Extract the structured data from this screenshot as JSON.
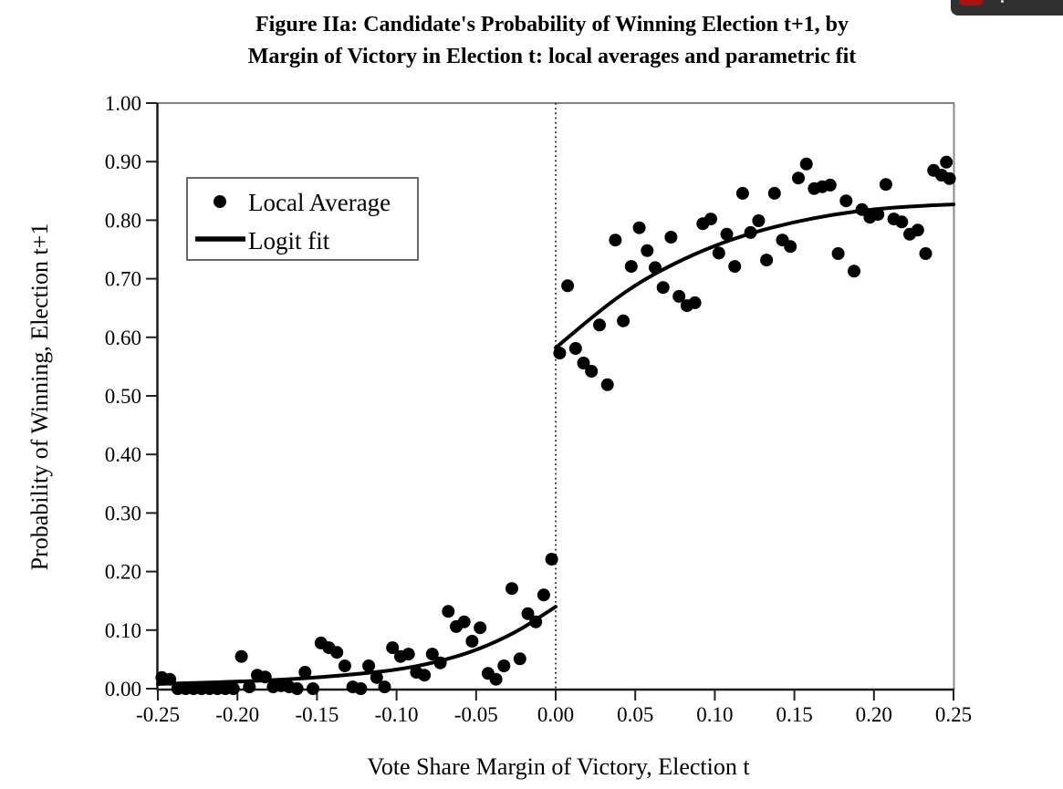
{
  "title": {
    "line1": "Figure IIa: Candidate's Probability of Winning Election t+1, by",
    "line2": "Margin of Victory in Election t: local averages and parametric fit"
  },
  "overlay": {
    "red_button_icon": "red-rounded-button",
    "white_dot_icon": "small-white-dot",
    "toolbar_bg": "#313131",
    "button_red": "#ac1212"
  },
  "colors": {
    "background": "#ffffff",
    "ink": "#000000",
    "frame_gray": "#888888"
  },
  "chart_data": {
    "type": "scatter",
    "title": "Figure IIa: Candidate's Probability of Winning Election t+1, by Margin of Victory in Election t: local averages and parametric fit",
    "xlabel": "Vote Share Margin of Victory, Election t",
    "ylabel": "Probability of Winning, Election t+1",
    "xlim": [
      -0.25,
      0.25
    ],
    "ylim": [
      0.0,
      1.0
    ],
    "grid": false,
    "legend_position": "upper-left-inside",
    "cutoff_line_x": 0.0,
    "x_ticks": [
      -0.25,
      -0.2,
      -0.15,
      -0.1,
      -0.05,
      0.0,
      0.05,
      0.1,
      0.15,
      0.2,
      0.25
    ],
    "x_tick_labels": [
      "-0.25",
      "-0.20",
      "-0.15",
      "-0.10",
      "-0.05",
      "0.00",
      "0.05",
      "0.10",
      "0.15",
      "0.20",
      "0.25"
    ],
    "y_ticks": [
      0.0,
      0.1,
      0.2,
      0.3,
      0.4,
      0.5,
      0.6,
      0.7,
      0.8,
      0.9,
      1.0
    ],
    "y_tick_labels": [
      "0.00",
      "0.10",
      "0.20",
      "0.30",
      "0.40",
      "0.50",
      "0.60",
      "0.70",
      "0.80",
      "0.90",
      "1.00"
    ],
    "legend": [
      {
        "label": "Local Average",
        "marker": "dot"
      },
      {
        "label": "Logit fit",
        "marker": "line"
      }
    ],
    "series": [
      {
        "name": "Local Average",
        "type": "scatter",
        "points": [
          [
            -0.2475,
            0.019
          ],
          [
            -0.2425,
            0.016
          ],
          [
            -0.2375,
            0.0
          ],
          [
            -0.2325,
            0.0
          ],
          [
            -0.2275,
            0.0
          ],
          [
            -0.2225,
            0.0
          ],
          [
            -0.2175,
            0.0
          ],
          [
            -0.2125,
            0.0
          ],
          [
            -0.2075,
            0.0
          ],
          [
            -0.2025,
            0.0
          ],
          [
            -0.1975,
            0.055
          ],
          [
            -0.1925,
            0.003
          ],
          [
            -0.1875,
            0.023
          ],
          [
            -0.1825,
            0.02
          ],
          [
            -0.1775,
            0.003
          ],
          [
            -0.1725,
            0.005
          ],
          [
            -0.1675,
            0.003
          ],
          [
            -0.1625,
            0.0
          ],
          [
            -0.1575,
            0.028
          ],
          [
            -0.1525,
            0.0
          ],
          [
            -0.1475,
            0.078
          ],
          [
            -0.1425,
            0.07
          ],
          [
            -0.1375,
            0.062
          ],
          [
            -0.1325,
            0.039
          ],
          [
            -0.1275,
            0.003
          ],
          [
            -0.1225,
            0.0
          ],
          [
            -0.1175,
            0.039
          ],
          [
            -0.1125,
            0.019
          ],
          [
            -0.1075,
            0.003
          ],
          [
            -0.1025,
            0.07
          ],
          [
            -0.0975,
            0.055
          ],
          [
            -0.0925,
            0.059
          ],
          [
            -0.0875,
            0.028
          ],
          [
            -0.0825,
            0.023
          ],
          [
            -0.0775,
            0.059
          ],
          [
            -0.0725,
            0.044
          ],
          [
            -0.0675,
            0.132
          ],
          [
            -0.0625,
            0.106
          ],
          [
            -0.0575,
            0.114
          ],
          [
            -0.0525,
            0.081
          ],
          [
            -0.0475,
            0.104
          ],
          [
            -0.0425,
            0.026
          ],
          [
            -0.0375,
            0.016
          ],
          [
            -0.0325,
            0.039
          ],
          [
            -0.0275,
            0.171
          ],
          [
            -0.0225,
            0.051
          ],
          [
            -0.0175,
            0.128
          ],
          [
            -0.0125,
            0.114
          ],
          [
            -0.0075,
            0.16
          ],
          [
            -0.0025,
            0.221
          ],
          [
            0.0025,
            0.573
          ],
          [
            0.0075,
            0.688
          ],
          [
            0.0125,
            0.581
          ],
          [
            0.0175,
            0.556
          ],
          [
            0.0225,
            0.542
          ],
          [
            0.0275,
            0.621
          ],
          [
            0.0325,
            0.519
          ],
          [
            0.0375,
            0.766
          ],
          [
            0.0425,
            0.628
          ],
          [
            0.0475,
            0.721
          ],
          [
            0.0525,
            0.787
          ],
          [
            0.0575,
            0.748
          ],
          [
            0.0625,
            0.719
          ],
          [
            0.0675,
            0.685
          ],
          [
            0.0725,
            0.771
          ],
          [
            0.0775,
            0.67
          ],
          [
            0.0825,
            0.654
          ],
          [
            0.0875,
            0.659
          ],
          [
            0.0925,
            0.794
          ],
          [
            0.0975,
            0.802
          ],
          [
            0.1025,
            0.744
          ],
          [
            0.1075,
            0.776
          ],
          [
            0.1125,
            0.721
          ],
          [
            0.1175,
            0.846
          ],
          [
            0.1225,
            0.779
          ],
          [
            0.1275,
            0.799
          ],
          [
            0.1325,
            0.732
          ],
          [
            0.1375,
            0.846
          ],
          [
            0.1425,
            0.766
          ],
          [
            0.1475,
            0.755
          ],
          [
            0.1525,
            0.872
          ],
          [
            0.1575,
            0.896
          ],
          [
            0.1625,
            0.854
          ],
          [
            0.1675,
            0.857
          ],
          [
            0.1725,
            0.86
          ],
          [
            0.1775,
            0.743
          ],
          [
            0.1825,
            0.833
          ],
          [
            0.1875,
            0.713
          ],
          [
            0.1925,
            0.818
          ],
          [
            0.1975,
            0.805
          ],
          [
            0.2025,
            0.81
          ],
          [
            0.2075,
            0.861
          ],
          [
            0.2125,
            0.802
          ],
          [
            0.2175,
            0.797
          ],
          [
            0.2225,
            0.776
          ],
          [
            0.2275,
            0.783
          ],
          [
            0.2325,
            0.743
          ],
          [
            0.2375,
            0.885
          ],
          [
            0.2425,
            0.877
          ],
          [
            0.2455,
            0.899
          ],
          [
            0.2475,
            0.871
          ]
        ]
      },
      {
        "name": "Logit fit",
        "type": "line",
        "segments": [
          [
            [
              -0.25,
              0.008
            ],
            [
              -0.225,
              0.01
            ],
            [
              -0.2,
              0.012
            ],
            [
              -0.175,
              0.015
            ],
            [
              -0.15,
              0.019
            ],
            [
              -0.125,
              0.025
            ],
            [
              -0.1,
              0.032
            ],
            [
              -0.075,
              0.045
            ],
            [
              -0.05,
              0.065
            ],
            [
              -0.025,
              0.096
            ],
            [
              -0.005,
              0.131
            ],
            [
              0.0,
              0.14
            ]
          ],
          [
            [
              0.0,
              0.582
            ],
            [
              0.025,
              0.64
            ],
            [
              0.05,
              0.69
            ],
            [
              0.075,
              0.727
            ],
            [
              0.1,
              0.757
            ],
            [
              0.125,
              0.78
            ],
            [
              0.15,
              0.797
            ],
            [
              0.175,
              0.81
            ],
            [
              0.2,
              0.819
            ],
            [
              0.225,
              0.824
            ],
            [
              0.25,
              0.827
            ]
          ]
        ]
      }
    ]
  }
}
